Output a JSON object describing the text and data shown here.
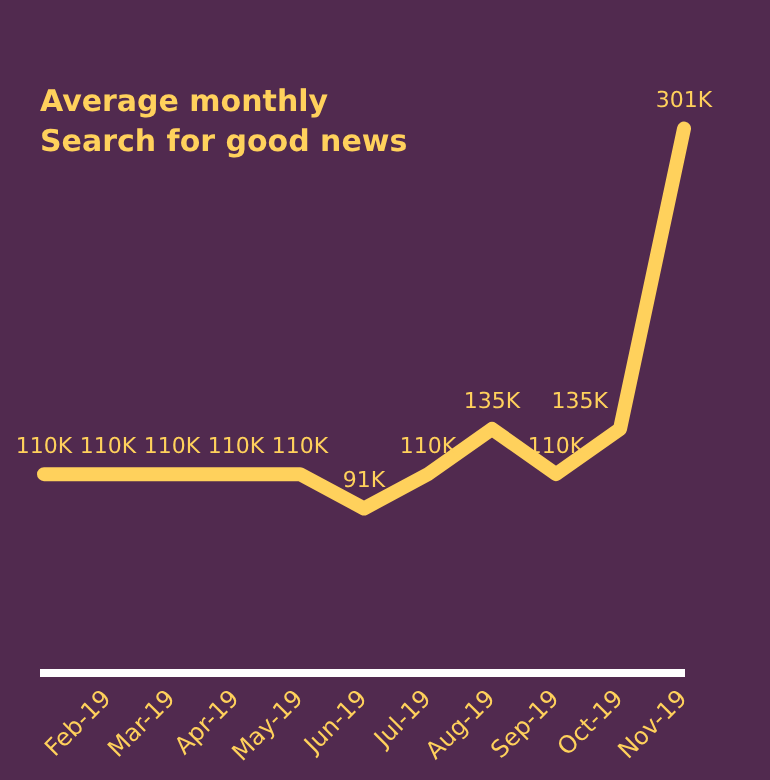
{
  "chart_data": {
    "type": "line",
    "title": "Average monthly\nSearch for good news",
    "categories": [
      null,
      "Feb-19",
      "Mar-19",
      "Apr-19",
      "May-19",
      "Jun-19",
      "Jul-19",
      "Aug-19",
      "Sep-19",
      "Oct-19",
      "Nov-19"
    ],
    "series": [
      {
        "color": "#ffd15c",
        "values": [
          110,
          110,
          110,
          110,
          110,
          91,
          110,
          135,
          110,
          135,
          301
        ],
        "value_labels": [
          "110K",
          "110K",
          "110K",
          "110K",
          "110K",
          "91K",
          "110K",
          "135K",
          "110K",
          "135K",
          "301K"
        ]
      }
    ],
    "tick_labels": "x",
    "grid": false,
    "legend": false,
    "marker": "none"
  }
}
